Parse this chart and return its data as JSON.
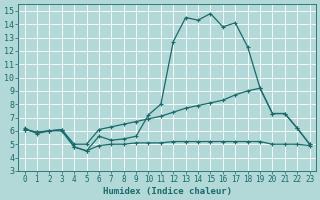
{
  "xlabel": "Humidex (Indice chaleur)",
  "bg_color": "#b2d8d8",
  "grid_color": "#ffffff",
  "line_color": "#1a6b6b",
  "xlim": [
    -0.5,
    23.5
  ],
  "ylim": [
    3,
    15.5
  ],
  "xticks": [
    0,
    1,
    2,
    3,
    4,
    5,
    6,
    7,
    8,
    9,
    10,
    11,
    12,
    13,
    14,
    15,
    16,
    17,
    18,
    19,
    20,
    21,
    22,
    23
  ],
  "yticks": [
    3,
    4,
    5,
    6,
    7,
    8,
    9,
    10,
    11,
    12,
    13,
    14,
    15
  ],
  "series1_x": [
    0,
    1,
    2,
    3,
    4,
    5,
    6,
    7,
    8,
    9,
    10,
    11,
    12,
    13,
    14,
    15,
    16,
    17,
    18,
    19,
    20,
    21,
    22,
    23
  ],
  "series1_y": [
    6.2,
    5.8,
    6.0,
    6.0,
    4.8,
    4.5,
    5.6,
    5.3,
    5.4,
    5.6,
    7.2,
    8.0,
    12.7,
    14.5,
    14.3,
    14.8,
    13.8,
    14.1,
    12.3,
    9.2,
    7.3,
    7.3,
    6.2,
    5.0
  ],
  "series2_x": [
    0,
    1,
    2,
    3,
    4,
    5,
    6,
    7,
    8,
    9,
    10,
    11,
    12,
    13,
    14,
    15,
    16,
    17,
    18,
    19,
    20,
    21,
    22,
    23
  ],
  "series2_y": [
    6.1,
    5.9,
    6.0,
    6.1,
    5.0,
    5.0,
    6.1,
    6.3,
    6.5,
    6.7,
    6.9,
    7.1,
    7.4,
    7.7,
    7.9,
    8.1,
    8.3,
    8.7,
    9.0,
    9.2,
    7.3,
    7.3,
    6.2,
    5.0
  ],
  "series3_x": [
    0,
    1,
    2,
    3,
    4,
    5,
    6,
    7,
    8,
    9,
    10,
    11,
    12,
    13,
    14,
    15,
    16,
    17,
    18,
    19,
    20,
    21,
    22,
    23
  ],
  "series3_y": [
    6.1,
    5.9,
    6.0,
    6.1,
    4.8,
    4.5,
    4.9,
    5.0,
    5.0,
    5.1,
    5.1,
    5.1,
    5.2,
    5.2,
    5.2,
    5.2,
    5.2,
    5.2,
    5.2,
    5.2,
    5.0,
    5.0,
    5.0,
    4.9
  ]
}
